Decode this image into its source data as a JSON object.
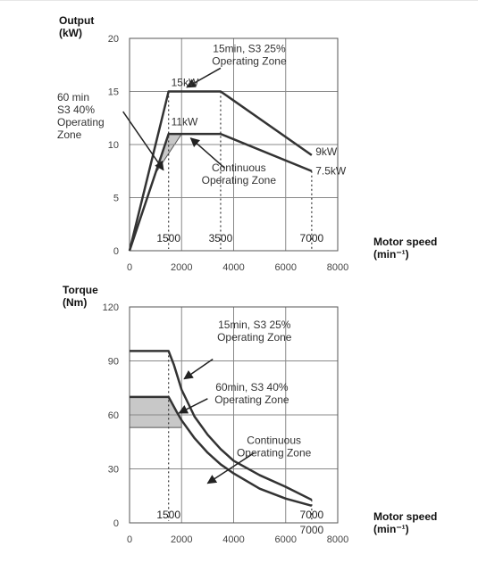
{
  "chart_data": [
    {
      "type": "line",
      "ylabel": [
        "Output",
        "(kW)"
      ],
      "xlabel": [
        "Motor speed",
        "(min⁻¹)"
      ],
      "xlim": [
        0,
        8000
      ],
      "ylim": [
        0,
        20
      ],
      "xticks": [
        0,
        2000,
        4000,
        6000,
        8000
      ],
      "yticks": [
        0,
        5,
        10,
        15,
        20
      ],
      "grid": true,
      "series": [
        {
          "points": [
            [
              0,
              0
            ],
            [
              1500,
              15
            ],
            [
              3500,
              15
            ],
            [
              7000,
              9
            ]
          ]
        },
        {
          "points": [
            [
              0,
              0
            ],
            [
              1500,
              11
            ],
            [
              3500,
              11
            ],
            [
              7000,
              7.5
            ]
          ]
        }
      ],
      "shaded_region": {
        "color": "#c8c8c8",
        "polygon": [
          [
            1500,
            11
          ],
          [
            2000,
            11
          ],
          [
            1000,
            7.3
          ]
        ]
      },
      "reference_speeds": [
        {
          "label": "1500",
          "x": 1500,
          "y_top": 15
        },
        {
          "label": "3500",
          "x": 3500,
          "y_top": 15
        },
        {
          "label": "7000",
          "x": 7000,
          "y_top": 7.5
        }
      ],
      "point_labels": [
        {
          "text": "15kW",
          "x": 1600,
          "y": 15.5
        },
        {
          "text": "11kW",
          "x": 1600,
          "y": 11.8
        },
        {
          "text": "9kW",
          "x": 7150,
          "y": 9
        },
        {
          "text": "7.5kW",
          "x": 7150,
          "y": 7.2
        }
      ],
      "zone_labels": [
        {
          "lines": [
            "15min, S3 25%",
            "Operating Zone"
          ],
          "x": 4600,
          "y": 18.7
        },
        {
          "lines": [
            "Continuous",
            "Operating Zone"
          ],
          "x": 4200,
          "y": 7.5
        }
      ],
      "outside_labels": [
        {
          "lines": [
            "60 min",
            "S3 40%",
            "Operating",
            "Zone"
          ]
        }
      ],
      "arrows": [
        {
          "from": [
            3500,
            17.2
          ],
          "to": [
            2200,
            15.4
          ]
        },
        {
          "from": [
            -250,
            13.1
          ],
          "to": [
            1300,
            7.6
          ]
        },
        {
          "from": [
            3650,
            7.8
          ],
          "to": [
            2350,
            10.6
          ]
        }
      ]
    },
    {
      "type": "line",
      "ylabel": [
        "Torque",
        "(Nm)"
      ],
      "xlabel": [
        "Motor speed",
        "(min⁻¹)"
      ],
      "xlim": [
        0,
        8000
      ],
      "ylim": [
        0,
        120
      ],
      "xticks": [
        0,
        2000,
        4000,
        6000,
        8000
      ],
      "yticks": [
        0,
        30,
        60,
        90,
        120
      ],
      "grid": true,
      "series": [
        {
          "points": [
            [
              0,
              95.5
            ],
            [
              1500,
              95.5
            ],
            [
              1700,
              88
            ],
            [
              2000,
              74
            ],
            [
              2500,
              59
            ],
            [
              3000,
              49
            ],
            [
              3500,
              41
            ],
            [
              4000,
              34.5
            ],
            [
              5000,
              26.5
            ],
            [
              6000,
              20
            ],
            [
              7000,
              12.8
            ]
          ]
        },
        {
          "points": [
            [
              0,
              70
            ],
            [
              1500,
              70
            ],
            [
              1800,
              62
            ],
            [
              2000,
              57
            ],
            [
              2500,
              47
            ],
            [
              3000,
              39
            ],
            [
              3500,
              32.5
            ],
            [
              4000,
              27.5
            ],
            [
              5000,
              19
            ],
            [
              6000,
              13.5
            ],
            [
              7000,
              9.5
            ]
          ]
        }
      ],
      "shaded_region": {
        "color": "#c8c8c8",
        "polygon": [
          [
            0,
            70
          ],
          [
            1500,
            70
          ],
          [
            1800,
            62
          ],
          [
            2000,
            57
          ],
          [
            2000,
            53
          ],
          [
            0,
            53
          ]
        ]
      },
      "reference_speeds": [
        {
          "label": "1500",
          "x": 1500,
          "y_top": 95.5
        },
        {
          "label": "7000",
          "x": 7000,
          "y_top": 12.8
        }
      ],
      "point_labels": [
        {
          "text": "7000",
          "x": 7000,
          "y": -6
        }
      ],
      "zone_labels": [
        {
          "lines": [
            "15min, S3 25%",
            "Operating Zone"
          ],
          "x": 4800,
          "y": 108
        },
        {
          "lines": [
            "60min, S3 40%",
            "Operating Zone"
          ],
          "x": 4700,
          "y": 73.5
        },
        {
          "lines": [
            "Continuous",
            "Operating Zone"
          ],
          "x": 5550,
          "y": 44
        }
      ],
      "outside_labels": [],
      "arrows": [
        {
          "from": [
            3200,
            91
          ],
          "to": [
            2100,
            80
          ]
        },
        {
          "from": [
            3000,
            69
          ],
          "to": [
            1900,
            61
          ]
        },
        {
          "from": [
            4800,
            39
          ],
          "to": [
            3000,
            22
          ]
        }
      ]
    }
  ]
}
